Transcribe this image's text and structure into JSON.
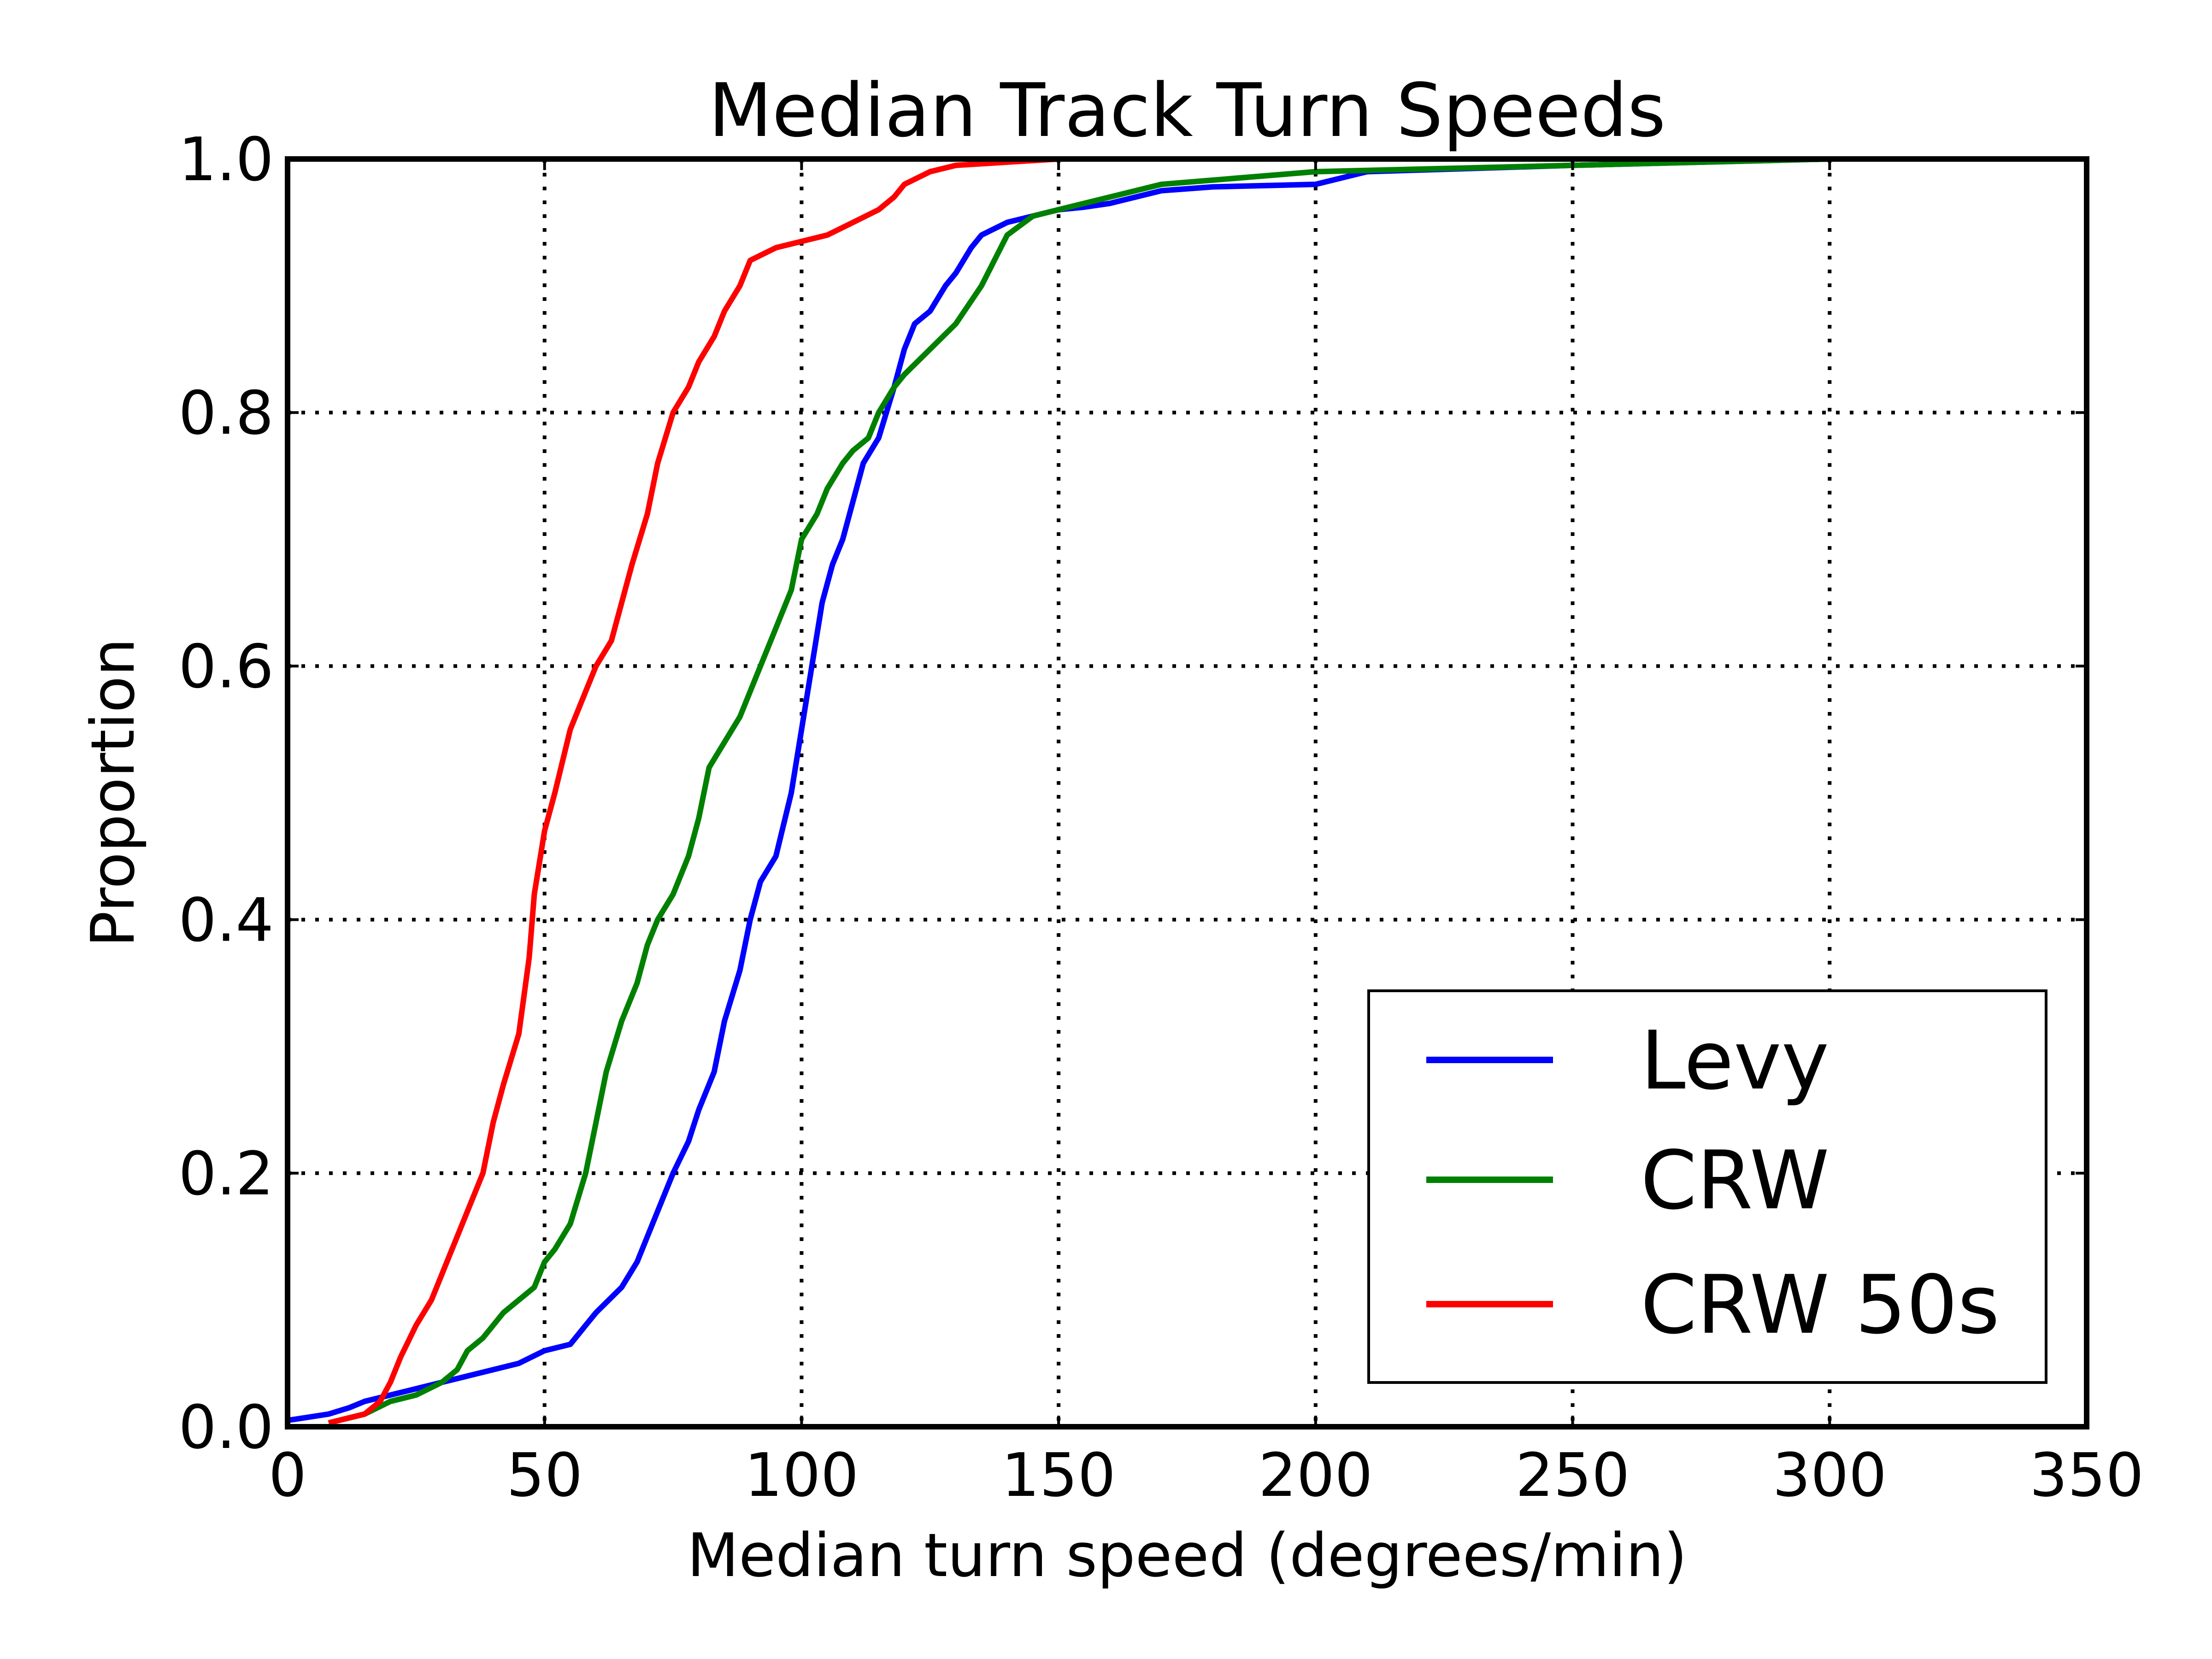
{
  "chart_data": {
    "type": "line",
    "title": "Median Track Turn Speeds",
    "xlabel": "Median turn speed (degrees/min)",
    "ylabel": "Proportion",
    "xlim": [
      0,
      350
    ],
    "ylim": [
      0,
      1.0
    ],
    "xticks": [
      0,
      50,
      100,
      150,
      200,
      250,
      300,
      350
    ],
    "xtick_labels": [
      "0",
      "50",
      "100",
      "150",
      "200",
      "250",
      "300",
      "350"
    ],
    "yticks": [
      0,
      0.2,
      0.4,
      0.6,
      0.8,
      1.0
    ],
    "ytick_labels": [
      "0.0",
      "0.2",
      "0.4",
      "0.6",
      "0.8",
      "1.0"
    ],
    "grid": true,
    "legend_position": "lower-right",
    "series": [
      {
        "name": "Levy",
        "color": "#0000ff",
        "x": [
          0,
          8,
          12,
          15,
          20,
          25,
          30,
          35,
          40,
          45,
          50,
          55,
          58,
          60,
          65,
          68,
          70,
          72,
          75,
          78,
          80,
          83,
          85,
          88,
          90,
          92,
          95,
          98,
          100,
          102,
          104,
          106,
          108,
          110,
          112,
          115,
          118,
          120,
          122,
          125,
          128,
          130,
          133,
          135,
          140,
          145,
          150,
          155,
          160,
          170,
          180,
          200,
          210,
          250,
          300
        ],
        "y": [
          0.005,
          0.01,
          0.015,
          0.02,
          0.025,
          0.03,
          0.035,
          0.04,
          0.045,
          0.05,
          0.06,
          0.065,
          0.08,
          0.09,
          0.11,
          0.13,
          0.15,
          0.17,
          0.2,
          0.225,
          0.25,
          0.28,
          0.32,
          0.36,
          0.4,
          0.43,
          0.45,
          0.5,
          0.55,
          0.6,
          0.65,
          0.68,
          0.7,
          0.73,
          0.76,
          0.78,
          0.82,
          0.85,
          0.87,
          0.88,
          0.9,
          0.91,
          0.93,
          0.94,
          0.95,
          0.955,
          0.96,
          0.962,
          0.965,
          0.975,
          0.978,
          0.98,
          0.99,
          0.995,
          1.0
        ]
      },
      {
        "name": "CRW",
        "color": "#008000",
        "x": [
          8,
          15,
          20,
          25,
          30,
          33,
          35,
          38,
          40,
          42,
          45,
          48,
          50,
          52,
          55,
          58,
          60,
          62,
          65,
          68,
          70,
          72,
          75,
          78,
          80,
          82,
          85,
          88,
          90,
          92,
          95,
          98,
          100,
          103,
          105,
          108,
          110,
          113,
          115,
          118,
          120,
          125,
          130,
          135,
          140,
          145,
          150,
          160,
          170,
          200,
          300
        ],
        "y": [
          0.003,
          0.01,
          0.02,
          0.025,
          0.035,
          0.045,
          0.06,
          0.07,
          0.08,
          0.09,
          0.1,
          0.11,
          0.13,
          0.14,
          0.16,
          0.2,
          0.24,
          0.28,
          0.32,
          0.35,
          0.38,
          0.4,
          0.42,
          0.45,
          0.48,
          0.52,
          0.54,
          0.56,
          0.58,
          0.6,
          0.63,
          0.66,
          0.7,
          0.72,
          0.74,
          0.76,
          0.77,
          0.78,
          0.8,
          0.82,
          0.83,
          0.85,
          0.87,
          0.9,
          0.94,
          0.955,
          0.96,
          0.97,
          0.98,
          0.99,
          1.0
        ]
      },
      {
        "name": "CRW 50s",
        "color": "#ff0000",
        "x": [
          8,
          15,
          18,
          20,
          22,
          25,
          28,
          30,
          32,
          35,
          38,
          40,
          42,
          45,
          47,
          48,
          50,
          52,
          55,
          58,
          60,
          63,
          65,
          67,
          70,
          72,
          75,
          78,
          80,
          83,
          85,
          88,
          90,
          95,
          100,
          105,
          110,
          115,
          118,
          120,
          125,
          130,
          150
        ],
        "y": [
          0.003,
          0.01,
          0.02,
          0.035,
          0.055,
          0.08,
          0.1,
          0.12,
          0.14,
          0.17,
          0.2,
          0.24,
          0.27,
          0.31,
          0.37,
          0.42,
          0.47,
          0.5,
          0.55,
          0.58,
          0.6,
          0.62,
          0.65,
          0.68,
          0.72,
          0.76,
          0.8,
          0.82,
          0.84,
          0.86,
          0.88,
          0.9,
          0.92,
          0.93,
          0.935,
          0.94,
          0.95,
          0.96,
          0.97,
          0.98,
          0.99,
          0.995,
          1.0
        ]
      }
    ]
  }
}
